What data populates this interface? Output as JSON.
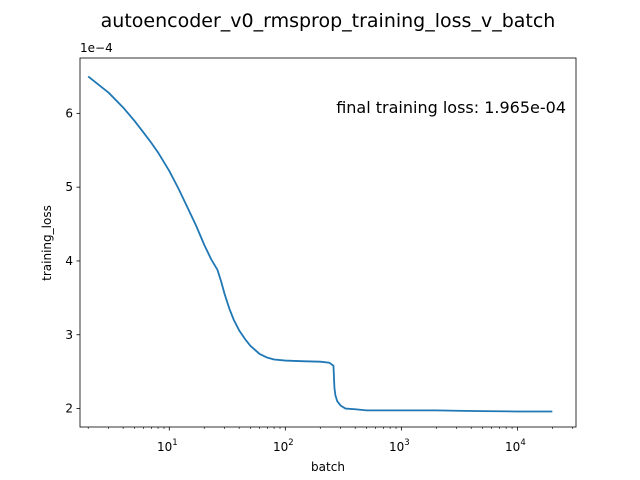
{
  "chart_data": {
    "type": "line",
    "title": "autoencoder_v0_rmsprop_training_loss_v_batch",
    "xlabel": "batch",
    "ylabel": "training_loss",
    "x_scale": "log",
    "xlim": [
      1.7,
      32000
    ],
    "ylim": [
      0.000175,
      0.000675
    ],
    "y_offset_label": "1e−4",
    "y_ticks": [
      {
        "value": 0.0002,
        "label": "2"
      },
      {
        "value": 0.0003,
        "label": "3"
      },
      {
        "value": 0.0004,
        "label": "4"
      },
      {
        "value": 0.0005,
        "label": "5"
      },
      {
        "value": 0.0006,
        "label": "6"
      }
    ],
    "x_ticks": [
      {
        "value": 10,
        "base": "10",
        "exp": "1"
      },
      {
        "value": 100,
        "base": "10",
        "exp": "2"
      },
      {
        "value": 1000,
        "base": "10",
        "exp": "3"
      },
      {
        "value": 10000,
        "base": "10",
        "exp": "4"
      }
    ],
    "annotation": "final training loss: 1.965e-04",
    "grid": false,
    "series": [
      {
        "color": "#1f77b4",
        "x": [
          2,
          3,
          4,
          5,
          6,
          7,
          8,
          10,
          12,
          14,
          17,
          20,
          23,
          26,
          28,
          30,
          33,
          36,
          40,
          45,
          50,
          60,
          70,
          80,
          100,
          120,
          150,
          200,
          240,
          260,
          265,
          270,
          280,
          300,
          330,
          400,
          500,
          700,
          1000,
          2000,
          3000,
          5000,
          10000,
          20000
        ],
        "y": [
          0.00065,
          0.000628,
          0.000608,
          0.00059,
          0.000574,
          0.00056,
          0.000547,
          0.000522,
          0.000498,
          0.000476,
          0.000448,
          0.000422,
          0.000402,
          0.000388,
          0.000372,
          0.000355,
          0.000335,
          0.00032,
          0.000306,
          0.000294,
          0.000285,
          0.000274,
          0.000269,
          0.0002665,
          0.000265,
          0.0002645,
          0.000264,
          0.0002635,
          0.000262,
          0.000258,
          0.000228,
          0.000218,
          0.00021,
          0.000204,
          0.0002,
          0.000199,
          0.0001975,
          0.0001975,
          0.0001975,
          0.0001975,
          0.000197,
          0.0001965,
          0.000196,
          0.000196
        ]
      }
    ]
  }
}
